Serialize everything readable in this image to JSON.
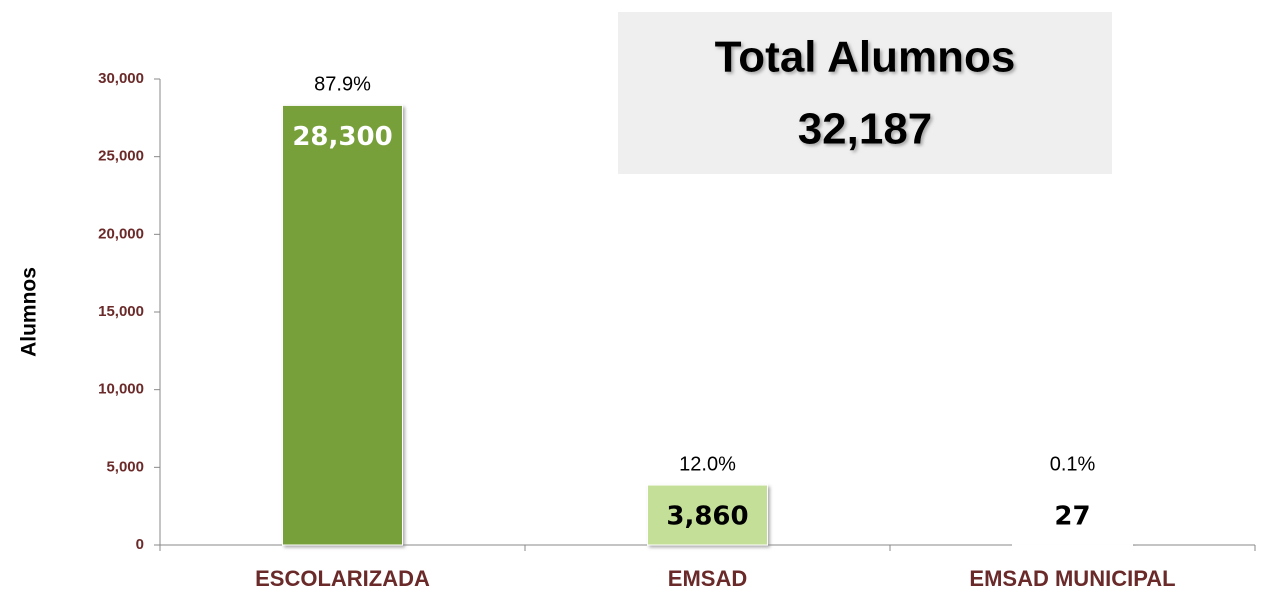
{
  "chart_data": {
    "type": "bar",
    "y_label": "Alumnos",
    "categories": [
      "ESCOLARIZADA",
      "EMSAD",
      "EMSAD MUNICIPAL"
    ],
    "values": [
      28300,
      3860,
      27
    ],
    "value_labels": [
      "28,300",
      "3,860",
      "27"
    ],
    "value_label_colors": [
      "#ffffff",
      "#000000",
      "#000000"
    ],
    "shares": [
      "87.9%",
      "12.0%",
      "0.1%"
    ],
    "colors": [
      "#77a03b",
      "#c4df97",
      "#9aa58a"
    ],
    "ylim": [
      0,
      30000
    ],
    "yticks": [
      0,
      {
        "value": 5000,
        "label": "5,000"
      },
      {
        "value": 10000,
        "label": "10,000"
      },
      {
        "value": 15000,
        "label": "15,000"
      },
      {
        "value": 20000,
        "label": "20,000"
      },
      {
        "value": 25000,
        "label": "25,000"
      },
      {
        "value": 30000,
        "label": "30,000"
      }
    ],
    "annotation": {
      "title": "Total Alumnos",
      "text": "32,187"
    }
  }
}
